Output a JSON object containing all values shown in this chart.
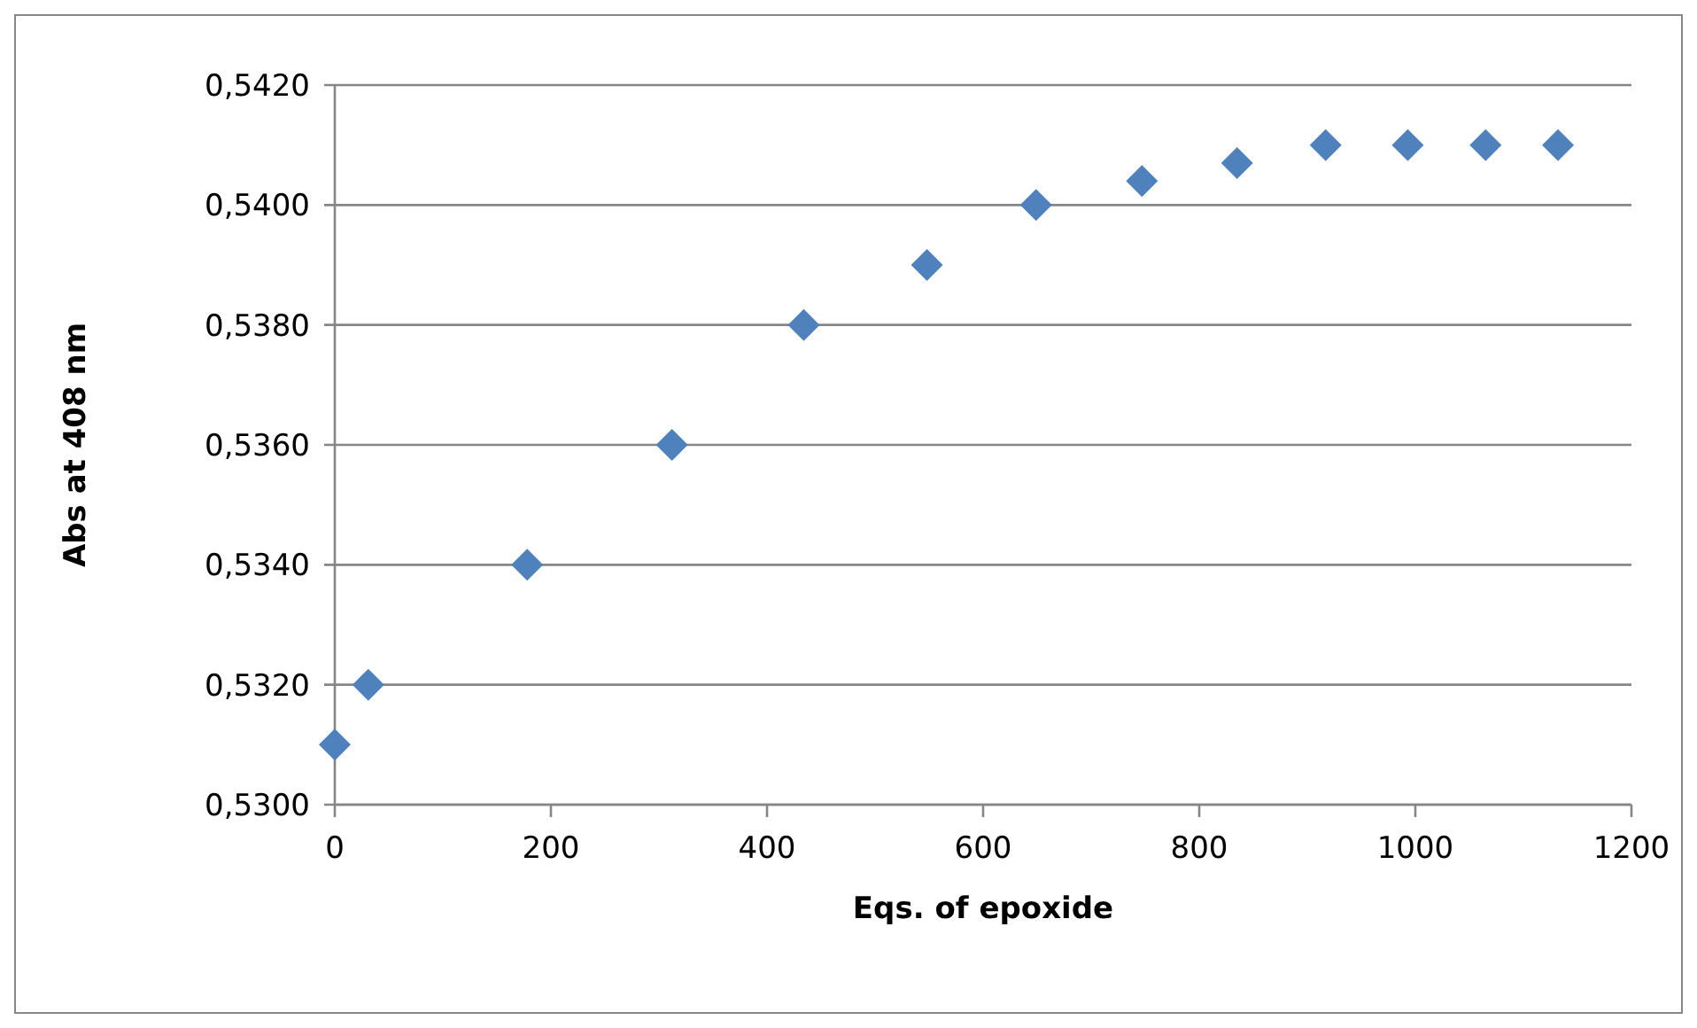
{
  "chart_data": {
    "type": "scatter",
    "xlabel": "Eqs. of epoxide",
    "ylabel": "Abs at 408 nm",
    "x": [
      0,
      31,
      178,
      312,
      434,
      548,
      649,
      747,
      835,
      917,
      993,
      1065,
      1132
    ],
    "series": [
      {
        "color": "#4f81bd",
        "values": [
          0.531,
          0.532,
          0.534,
          0.536,
          0.538,
          0.539,
          0.54,
          0.5404,
          0.5407,
          0.541,
          0.541,
          0.541,
          0.541
        ]
      }
    ],
    "xlim": [
      0,
      1200
    ],
    "xticks": [
      0,
      200,
      400,
      600,
      800,
      1000,
      1200
    ],
    "ylim": [
      0.53,
      0.542
    ],
    "yticks": [
      {
        "value": 0.53,
        "label": "0,5300"
      },
      {
        "value": 0.532,
        "label": "0,5320"
      },
      {
        "value": 0.534,
        "label": "0,5340"
      },
      {
        "value": 0.536,
        "label": "0,5360"
      },
      {
        "value": 0.538,
        "label": "0,5380"
      },
      {
        "value": 0.54,
        "label": "0,5400"
      },
      {
        "value": 0.542,
        "label": "0,5420"
      }
    ],
    "grid": "y",
    "marker": "diamond"
  }
}
